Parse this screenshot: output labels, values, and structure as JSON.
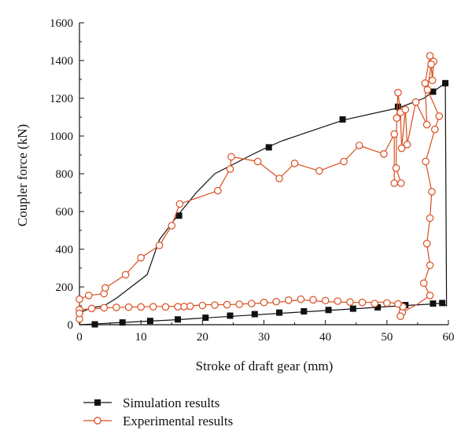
{
  "chart_data": {
    "type": "line",
    "xlabel": "Stroke of draft gear (mm)",
    "ylabel": "Coupler force (kN)",
    "xlim": [
      0,
      60
    ],
    "ylim": [
      0,
      1600
    ],
    "xticks": [
      0,
      10,
      20,
      30,
      40,
      50,
      60
    ],
    "yticks": [
      0,
      200,
      400,
      600,
      800,
      1000,
      1200,
      1400,
      1600
    ],
    "grid": false,
    "legend_position": "bottom-left",
    "series": [
      {
        "name": "Simulation results",
        "color": "#111111",
        "marker": "square",
        "line": [
          [
            0,
            0
          ],
          [
            0.5,
            70
          ],
          [
            2,
            90
          ],
          [
            4,
            100
          ],
          [
            6,
            140
          ],
          [
            8,
            190
          ],
          [
            11,
            265
          ],
          [
            13,
            450
          ],
          [
            16,
            580
          ],
          [
            19,
            700
          ],
          [
            22,
            800
          ],
          [
            25,
            850
          ],
          [
            28,
            900
          ],
          [
            30.5,
            940
          ],
          [
            33,
            975
          ],
          [
            43,
            1085
          ],
          [
            52,
            1150
          ],
          [
            56,
            1200
          ],
          [
            57.5,
            1235
          ],
          [
            59.5,
            1280
          ],
          [
            59.7,
            100
          ],
          [
            59,
            115
          ],
          [
            57.5,
            110
          ],
          [
            52,
            100
          ],
          [
            45,
            85
          ],
          [
            35,
            65
          ],
          [
            25,
            45
          ],
          [
            15,
            25
          ],
          [
            7,
            12
          ],
          [
            2,
            3
          ],
          [
            0,
            0
          ]
        ],
        "markers": [
          [
            2.5,
            2
          ],
          [
            7,
            12
          ],
          [
            11.5,
            20
          ],
          [
            16,
            28
          ],
          [
            20.5,
            37
          ],
          [
            24.5,
            48
          ],
          [
            28.5,
            56
          ],
          [
            32.5,
            64
          ],
          [
            36.5,
            71
          ],
          [
            40.5,
            78
          ],
          [
            44.5,
            85
          ],
          [
            48.5,
            92
          ],
          [
            53,
            104
          ],
          [
            57.5,
            112
          ],
          [
            59,
            115
          ],
          [
            16.2,
            578
          ],
          [
            30.8,
            940
          ],
          [
            42.8,
            1088
          ],
          [
            51.8,
            1155
          ],
          [
            57.5,
            1235
          ],
          [
            59.5,
            1280
          ]
        ]
      },
      {
        "name": "Experimental results",
        "color": "#d94e1f",
        "marker": "circle-open",
        "line": [
          [
            0,
            30
          ],
          [
            0,
            135
          ],
          [
            1.5,
            155
          ],
          [
            4,
            165
          ],
          [
            4.2,
            195
          ],
          [
            7.5,
            265
          ],
          [
            10,
            355
          ],
          [
            13,
            420
          ],
          [
            15,
            525
          ],
          [
            16.3,
            640
          ],
          [
            22.5,
            710
          ],
          [
            24.5,
            825
          ],
          [
            24.7,
            890
          ],
          [
            29,
            865
          ],
          [
            32.5,
            775
          ],
          [
            35,
            855
          ],
          [
            39,
            815
          ],
          [
            43,
            865
          ],
          [
            45.5,
            950
          ],
          [
            49.5,
            905
          ],
          [
            51.2,
            1010
          ],
          [
            51.2,
            750
          ],
          [
            52.3,
            750
          ],
          [
            51.5,
            830
          ],
          [
            51.6,
            1095
          ],
          [
            51.8,
            1230
          ],
          [
            52.2,
            1125
          ],
          [
            52.4,
            935
          ],
          [
            53,
            1140
          ],
          [
            53.3,
            955
          ],
          [
            54.7,
            1180
          ],
          [
            56.5,
            1060
          ],
          [
            56.2,
            1280
          ],
          [
            57,
            1425
          ],
          [
            57.6,
            1395
          ],
          [
            57.4,
            1295
          ],
          [
            57.2,
            1380
          ],
          [
            56.6,
            1245
          ],
          [
            58.5,
            1105
          ],
          [
            57.8,
            1035
          ],
          [
            56.3,
            865
          ],
          [
            57.3,
            705
          ],
          [
            57,
            565
          ],
          [
            56.5,
            430
          ],
          [
            57,
            315
          ],
          [
            56,
            220
          ],
          [
            57,
            155
          ],
          [
            55,
            110
          ],
          [
            52.5,
            65
          ],
          [
            52.2,
            45
          ],
          [
            52,
            110
          ],
          [
            50,
            120
          ],
          [
            45,
            118
          ],
          [
            40,
            122
          ],
          [
            36,
            132
          ],
          [
            32,
            118
          ],
          [
            28,
            112
          ],
          [
            24,
            106
          ],
          [
            20,
            106
          ],
          [
            18,
            98
          ],
          [
            12,
            96
          ],
          [
            6,
            92
          ],
          [
            2,
            84
          ],
          [
            0,
            80
          ],
          [
            0,
            30
          ]
        ],
        "markers": [
          [
            0,
            135
          ],
          [
            1.5,
            155
          ],
          [
            4,
            165
          ],
          [
            4.2,
            195
          ],
          [
            7.5,
            265
          ],
          [
            10,
            355
          ],
          [
            13,
            420
          ],
          [
            15,
            525
          ],
          [
            16.3,
            640
          ],
          [
            22.5,
            710
          ],
          [
            24.5,
            825
          ],
          [
            24.7,
            890
          ],
          [
            29,
            865
          ],
          [
            32.5,
            775
          ],
          [
            35,
            855
          ],
          [
            39,
            815
          ],
          [
            43,
            865
          ],
          [
            45.5,
            950
          ],
          [
            49.5,
            905
          ],
          [
            51.2,
            1010
          ],
          [
            51.2,
            750
          ],
          [
            52.3,
            750
          ],
          [
            51.5,
            830
          ],
          [
            51.6,
            1095
          ],
          [
            51.8,
            1230
          ],
          [
            52.2,
            1125
          ],
          [
            52.4,
            935
          ],
          [
            53,
            1140
          ],
          [
            53.3,
            955
          ],
          [
            54.7,
            1180
          ],
          [
            56.5,
            1060
          ],
          [
            56.2,
            1280
          ],
          [
            57,
            1425
          ],
          [
            57.6,
            1395
          ],
          [
            57.4,
            1295
          ],
          [
            57.2,
            1380
          ],
          [
            56.6,
            1245
          ],
          [
            58.5,
            1105
          ],
          [
            57.8,
            1035
          ],
          [
            56.3,
            865
          ],
          [
            57.3,
            705
          ],
          [
            57,
            565
          ],
          [
            56.5,
            430
          ],
          [
            57,
            315
          ],
          [
            56,
            220
          ],
          [
            57,
            155
          ],
          [
            52.5,
            65
          ],
          [
            52.2,
            45
          ],
          [
            52.6,
            95
          ],
          [
            51.8,
            110
          ],
          [
            50,
            115
          ],
          [
            48,
            112
          ],
          [
            46,
            118
          ],
          [
            44,
            120
          ],
          [
            42,
            125
          ],
          [
            40,
            128
          ],
          [
            38,
            132
          ],
          [
            36,
            135
          ],
          [
            34,
            130
          ],
          [
            32,
            122
          ],
          [
            30,
            118
          ],
          [
            28,
            112
          ],
          [
            26,
            108
          ],
          [
            24,
            106
          ],
          [
            22,
            104
          ],
          [
            20,
            102
          ],
          [
            18,
            98
          ],
          [
            17,
            96
          ],
          [
            16,
            95
          ],
          [
            14,
            94
          ],
          [
            12,
            95
          ],
          [
            10,
            94
          ],
          [
            8,
            93
          ],
          [
            6,
            92
          ],
          [
            4,
            90
          ],
          [
            2,
            86
          ],
          [
            0,
            80
          ],
          [
            0,
            30
          ],
          [
            0,
            60
          ]
        ]
      }
    ]
  }
}
